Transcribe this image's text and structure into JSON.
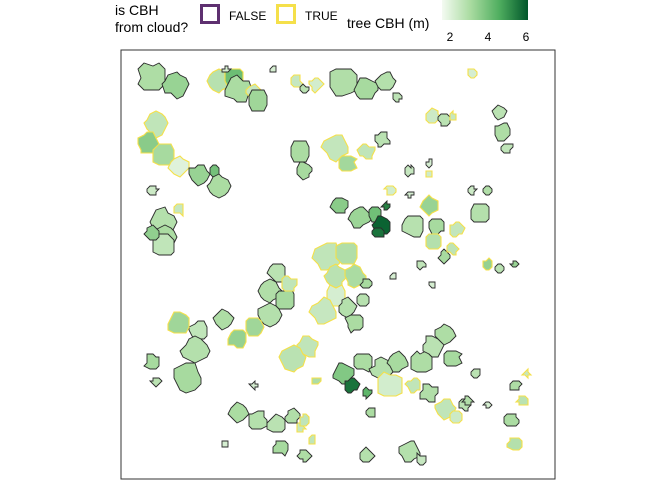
{
  "legend": {
    "cloud_title": "is CBH\nfrom cloud?",
    "false_label": "FALSE",
    "true_label": "TRUE",
    "false_color": "#5e3070",
    "true_color": "#f5e04a",
    "height_title": "tree CBH (m)",
    "height_ticks": [
      "2",
      "4",
      "6"
    ],
    "gradient_low": "#f4fbf2",
    "gradient_high": "#00562a"
  },
  "chart_data": {
    "type": "map",
    "xlabel": "",
    "ylabel": "",
    "scale": {
      "value_min": 0.5,
      "value_max": 7.5,
      "ticks": [
        2,
        4,
        6
      ]
    },
    "crowns": [
      {
        "x": 8,
        "y": 7,
        "r": 4,
        "v": 2.8,
        "cloud": false
      },
      {
        "x": 14,
        "y": 9,
        "r": 3.5,
        "v": 3.4,
        "cloud": false
      },
      {
        "x": 25,
        "y": 8,
        "r": 3,
        "v": 2.5,
        "cloud": true
      },
      {
        "x": 29,
        "y": 7,
        "r": 2.5,
        "v": 4.6,
        "cloud": true
      },
      {
        "x": 30,
        "y": 10,
        "r": 3.5,
        "v": 2.9,
        "cloud": false
      },
      {
        "x": 34,
        "y": 11,
        "r": 2.2,
        "v": 2.0,
        "cloud": true
      },
      {
        "x": 35,
        "y": 13,
        "r": 3,
        "v": 3.2,
        "cloud": false
      },
      {
        "x": 27,
        "y": 5,
        "r": 0.9,
        "v": 1.5,
        "cloud": false
      },
      {
        "x": 39,
        "y": 5,
        "r": 0.9,
        "v": 1.5,
        "cloud": false
      },
      {
        "x": 45,
        "y": 8,
        "r": 1.5,
        "v": 2.0,
        "cloud": true
      },
      {
        "x": 47,
        "y": 10,
        "r": 1.2,
        "v": 2.4,
        "cloud": false
      },
      {
        "x": 50,
        "y": 9,
        "r": 1.8,
        "v": 1.6,
        "cloud": true
      },
      {
        "x": 57,
        "y": 8,
        "r": 4,
        "v": 2.7,
        "cloud": false
      },
      {
        "x": 63,
        "y": 10,
        "r": 3.2,
        "v": 3.0,
        "cloud": false
      },
      {
        "x": 68,
        "y": 8,
        "r": 2.6,
        "v": 2.6,
        "cloud": false
      },
      {
        "x": 71,
        "y": 12,
        "r": 1.2,
        "v": 2.3,
        "cloud": false
      },
      {
        "x": 90,
        "y": 6,
        "r": 1.3,
        "v": 1.5,
        "cloud": true
      },
      {
        "x": 80,
        "y": 17,
        "r": 2,
        "v": 1.8,
        "cloud": true
      },
      {
        "x": 83,
        "y": 18,
        "r": 1.6,
        "v": 2.4,
        "cloud": false
      },
      {
        "x": 85,
        "y": 17,
        "r": 1.1,
        "v": 2.0,
        "cloud": true
      },
      {
        "x": 97,
        "y": 16,
        "r": 1.9,
        "v": 2.4,
        "cloud": false
      },
      {
        "x": 98,
        "y": 21,
        "r": 2.3,
        "v": 2.8,
        "cloud": false
      },
      {
        "x": 99,
        "y": 25,
        "r": 1.4,
        "v": 2.2,
        "cloud": false
      },
      {
        "x": 9,
        "y": 19,
        "r": 3.2,
        "v": 2.2,
        "cloud": true
      },
      {
        "x": 7,
        "y": 24,
        "r": 3,
        "v": 3.8,
        "cloud": true
      },
      {
        "x": 11,
        "y": 27,
        "r": 3.2,
        "v": 3.0,
        "cloud": true
      },
      {
        "x": 15,
        "y": 30,
        "r": 2.6,
        "v": 1.2,
        "cloud": true
      },
      {
        "x": 20,
        "y": 32,
        "r": 2.8,
        "v": 3.4,
        "cloud": false
      },
      {
        "x": 24,
        "y": 31,
        "r": 1.5,
        "v": 4.4,
        "cloud": false
      },
      {
        "x": 25,
        "y": 35,
        "r": 3,
        "v": 2.9,
        "cloud": false
      },
      {
        "x": 8,
        "y": 36,
        "r": 1.5,
        "v": 1.8,
        "cloud": false
      },
      {
        "x": 15,
        "y": 41,
        "r": 1.4,
        "v": 2.0,
        "cloud": true
      },
      {
        "x": 11,
        "y": 44,
        "r": 3.5,
        "v": 2.6,
        "cloud": false
      },
      {
        "x": 11,
        "y": 48,
        "r": 3.2,
        "v": 2.9,
        "cloud": false
      },
      {
        "x": 46,
        "y": 26,
        "r": 3,
        "v": 2.9,
        "cloud": false
      },
      {
        "x": 47,
        "y": 31,
        "r": 2.3,
        "v": 3.0,
        "cloud": false
      },
      {
        "x": 55,
        "y": 25,
        "r": 3.5,
        "v": 2.1,
        "cloud": true
      },
      {
        "x": 58,
        "y": 29,
        "r": 2.6,
        "v": 3.1,
        "cloud": true
      },
      {
        "x": 63,
        "y": 26,
        "r": 2.2,
        "v": 2.2,
        "cloud": true
      },
      {
        "x": 67,
        "y": 23,
        "r": 2,
        "v": 2.4,
        "cloud": false
      },
      {
        "x": 74,
        "y": 31,
        "r": 1.4,
        "v": 2.0,
        "cloud": false
      },
      {
        "x": 79,
        "y": 32,
        "r": 1,
        "v": 1.7,
        "cloud": true
      },
      {
        "x": 79,
        "y": 29,
        "r": 0.9,
        "v": 1.5,
        "cloud": false
      },
      {
        "x": 69,
        "y": 36,
        "r": 1.4,
        "v": 1.6,
        "cloud": true
      },
      {
        "x": 74,
        "y": 37,
        "r": 0.9,
        "v": 1.5,
        "cloud": false
      },
      {
        "x": 90,
        "y": 36,
        "r": 1.1,
        "v": 1.8,
        "cloud": false
      },
      {
        "x": 94,
        "y": 36,
        "r": 1.2,
        "v": 2.7,
        "cloud": false
      },
      {
        "x": 56,
        "y": 40,
        "r": 2.3,
        "v": 3.8,
        "cloud": false
      },
      {
        "x": 61,
        "y": 43,
        "r": 3,
        "v": 3.3,
        "cloud": false
      },
      {
        "x": 65,
        "y": 42,
        "r": 2,
        "v": 4.5,
        "cloud": false
      },
      {
        "x": 67,
        "y": 45,
        "r": 2.5,
        "v": 7.2,
        "cloud": false
      },
      {
        "x": 68,
        "y": 40,
        "r": 1,
        "v": 6.5,
        "cloud": false
      },
      {
        "x": 66,
        "y": 47,
        "r": 1.5,
        "v": 6.8,
        "cloud": false
      },
      {
        "x": 75,
        "y": 45,
        "r": 3,
        "v": 2.5,
        "cloud": false
      },
      {
        "x": 79,
        "y": 40,
        "r": 2.5,
        "v": 3.4,
        "cloud": true
      },
      {
        "x": 81,
        "y": 45,
        "r": 2.2,
        "v": 3.0,
        "cloud": false
      },
      {
        "x": 80,
        "y": 49,
        "r": 2.2,
        "v": 2.6,
        "cloud": true
      },
      {
        "x": 83,
        "y": 53,
        "r": 1.6,
        "v": 3.0,
        "cloud": false
      },
      {
        "x": 86,
        "y": 46,
        "r": 2,
        "v": 2.1,
        "cloud": true
      },
      {
        "x": 92,
        "y": 42,
        "r": 2.8,
        "v": 2.6,
        "cloud": false
      },
      {
        "x": 85,
        "y": 51,
        "r": 1.5,
        "v": 2.3,
        "cloud": true
      },
      {
        "x": 77,
        "y": 55,
        "r": 1.2,
        "v": 2.2,
        "cloud": false
      },
      {
        "x": 97,
        "y": 56,
        "r": 1.3,
        "v": 2.4,
        "cloud": false
      },
      {
        "x": 101,
        "y": 55,
        "r": 0.9,
        "v": 3.4,
        "cloud": false
      },
      {
        "x": 94,
        "y": 55,
        "r": 1.5,
        "v": 3.5,
        "cloud": true
      },
      {
        "x": 11,
        "y": 50,
        "r": 3,
        "v": 2.2,
        "cloud": false
      },
      {
        "x": 8,
        "y": 47,
        "r": 2,
        "v": 3.6,
        "cloud": false
      },
      {
        "x": 53,
        "y": 53,
        "r": 3.8,
        "v": 2.2,
        "cloud": true
      },
      {
        "x": 58,
        "y": 52,
        "r": 3.2,
        "v": 2.7,
        "cloud": true
      },
      {
        "x": 55,
        "y": 58,
        "r": 3,
        "v": 2.4,
        "cloud": true
      },
      {
        "x": 60,
        "y": 58,
        "r": 3,
        "v": 2.9,
        "cloud": true
      },
      {
        "x": 55,
        "y": 63,
        "r": 3,
        "v": 1.5,
        "cloud": true
      },
      {
        "x": 58,
        "y": 66,
        "r": 2.5,
        "v": 2.6,
        "cloud": false
      },
      {
        "x": 52,
        "y": 67,
        "r": 3.5,
        "v": 2.0,
        "cloud": true
      },
      {
        "x": 60,
        "y": 70,
        "r": 2.6,
        "v": 2.9,
        "cloud": false
      },
      {
        "x": 48,
        "y": 76,
        "r": 3,
        "v": 2.2,
        "cloud": true
      },
      {
        "x": 44,
        "y": 79,
        "r": 3.5,
        "v": 2.4,
        "cloud": true
      },
      {
        "x": 62,
        "y": 64,
        "r": 2,
        "v": 2.5,
        "cloud": false
      },
      {
        "x": 63,
        "y": 60,
        "r": 1.5,
        "v": 3.0,
        "cloud": false
      },
      {
        "x": 70,
        "y": 58,
        "r": 0.9,
        "v": 1.5,
        "cloud": false
      },
      {
        "x": 80,
        "y": 60,
        "r": 0.9,
        "v": 1.5,
        "cloud": false
      },
      {
        "x": 40,
        "y": 57,
        "r": 2.5,
        "v": 2.4,
        "cloud": false
      },
      {
        "x": 38,
        "y": 62,
        "r": 3,
        "v": 2.7,
        "cloud": false
      },
      {
        "x": 42,
        "y": 64,
        "r": 3,
        "v": 3.0,
        "cloud": false
      },
      {
        "x": 43,
        "y": 60,
        "r": 2.2,
        "v": 2.2,
        "cloud": true
      },
      {
        "x": 38,
        "y": 68,
        "r": 3.2,
        "v": 2.6,
        "cloud": false
      },
      {
        "x": 34,
        "y": 71,
        "r": 2.6,
        "v": 3.2,
        "cloud": true
      },
      {
        "x": 30,
        "y": 74,
        "r": 2.6,
        "v": 3.5,
        "cloud": true
      },
      {
        "x": 26,
        "y": 69,
        "r": 2.6,
        "v": 2.8,
        "cloud": false
      },
      {
        "x": 20,
        "y": 72,
        "r": 2.6,
        "v": 2.2,
        "cloud": false
      },
      {
        "x": 15,
        "y": 70,
        "r": 3,
        "v": 3.2,
        "cloud": true
      },
      {
        "x": 19,
        "y": 77,
        "r": 3.6,
        "v": 2.6,
        "cloud": false
      },
      {
        "x": 17,
        "y": 84,
        "r": 4,
        "v": 3.0,
        "cloud": false
      },
      {
        "x": 8,
        "y": 80,
        "r": 2,
        "v": 3.0,
        "cloud": false
      },
      {
        "x": 9,
        "y": 85,
        "r": 1.2,
        "v": 2.4,
        "cloud": false
      },
      {
        "x": 34,
        "y": 86,
        "r": 0.9,
        "v": 1.5,
        "cloud": false
      },
      {
        "x": 50,
        "y": 85,
        "r": 1.1,
        "v": 2.8,
        "cloud": true
      },
      {
        "x": 57,
        "y": 83,
        "r": 3,
        "v": 4.0,
        "cloud": false
      },
      {
        "x": 59,
        "y": 86,
        "r": 2,
        "v": 6.8,
        "cloud": false
      },
      {
        "x": 62,
        "y": 80,
        "r": 2.6,
        "v": 2.9,
        "cloud": false
      },
      {
        "x": 67,
        "y": 82,
        "r": 3.2,
        "v": 2.6,
        "cloud": false
      },
      {
        "x": 71,
        "y": 80,
        "r": 2.8,
        "v": 3.0,
        "cloud": false
      },
      {
        "x": 69,
        "y": 86,
        "r": 3.6,
        "v": 1.6,
        "cloud": true
      },
      {
        "x": 63,
        "y": 88,
        "r": 1.3,
        "v": 5.0,
        "cloud": false
      },
      {
        "x": 75,
        "y": 86,
        "r": 2,
        "v": 2.2,
        "cloud": true
      },
      {
        "x": 77,
        "y": 80,
        "r": 3,
        "v": 2.8,
        "cloud": false
      },
      {
        "x": 80,
        "y": 76,
        "r": 3,
        "v": 2.4,
        "cloud": false
      },
      {
        "x": 83,
        "y": 73,
        "r": 2.6,
        "v": 2.8,
        "cloud": false
      },
      {
        "x": 85,
        "y": 79,
        "r": 2.5,
        "v": 3.0,
        "cloud": false
      },
      {
        "x": 79,
        "y": 88,
        "r": 2.6,
        "v": 2.7,
        "cloud": false
      },
      {
        "x": 83,
        "y": 92,
        "r": 2.6,
        "v": 2.2,
        "cloud": true
      },
      {
        "x": 86,
        "y": 94,
        "r": 2,
        "v": 1.8,
        "cloud": true
      },
      {
        "x": 88,
        "y": 91,
        "r": 1.5,
        "v": 2.4,
        "cloud": false
      },
      {
        "x": 94,
        "y": 91,
        "r": 0.9,
        "v": 1.5,
        "cloud": false
      },
      {
        "x": 91,
        "y": 83,
        "r": 1.4,
        "v": 2.4,
        "cloud": false
      },
      {
        "x": 101,
        "y": 86,
        "r": 1.6,
        "v": 2.8,
        "cloud": false
      },
      {
        "x": 103,
        "y": 90,
        "r": 1.4,
        "v": 2.4,
        "cloud": true
      },
      {
        "x": 100,
        "y": 95,
        "r": 2,
        "v": 2.9,
        "cloud": false
      },
      {
        "x": 101,
        "y": 101,
        "r": 2,
        "v": 2.6,
        "cloud": true
      },
      {
        "x": 104,
        "y": 83,
        "r": 0.9,
        "v": 2.0,
        "cloud": true
      },
      {
        "x": 64,
        "y": 93,
        "r": 1.5,
        "v": 2.9,
        "cloud": false
      },
      {
        "x": 46,
        "y": 97,
        "r": 1.2,
        "v": 2.0,
        "cloud": true
      },
      {
        "x": 30,
        "y": 93,
        "r": 2.6,
        "v": 2.9,
        "cloud": false
      },
      {
        "x": 35,
        "y": 95,
        "r": 2.6,
        "v": 2.6,
        "cloud": false
      },
      {
        "x": 40,
        "y": 96,
        "r": 2.6,
        "v": 2.4,
        "cloud": false
      },
      {
        "x": 44,
        "y": 94,
        "r": 2,
        "v": 2.7,
        "cloud": false
      },
      {
        "x": 47,
        "y": 95,
        "r": 1.6,
        "v": 2.2,
        "cloud": true
      },
      {
        "x": 41,
        "y": 102,
        "r": 2,
        "v": 3.0,
        "cloud": false
      },
      {
        "x": 47,
        "y": 104,
        "r": 1.6,
        "v": 2.8,
        "cloud": false
      },
      {
        "x": 49,
        "y": 100,
        "r": 1.2,
        "v": 2.2,
        "cloud": true
      },
      {
        "x": 27,
        "y": 101,
        "r": 0.9,
        "v": 1.5,
        "cloud": false
      },
      {
        "x": 63,
        "y": 104,
        "r": 2,
        "v": 2.6,
        "cloud": false
      },
      {
        "x": 74,
        "y": 103,
        "r": 2.8,
        "v": 2.6,
        "cloud": false
      },
      {
        "x": 77,
        "y": 105,
        "r": 1.5,
        "v": 2.0,
        "cloud": false
      },
      {
        "x": 89,
        "y": 90,
        "r": 1.2,
        "v": 2.7,
        "cloud": false
      }
    ]
  }
}
